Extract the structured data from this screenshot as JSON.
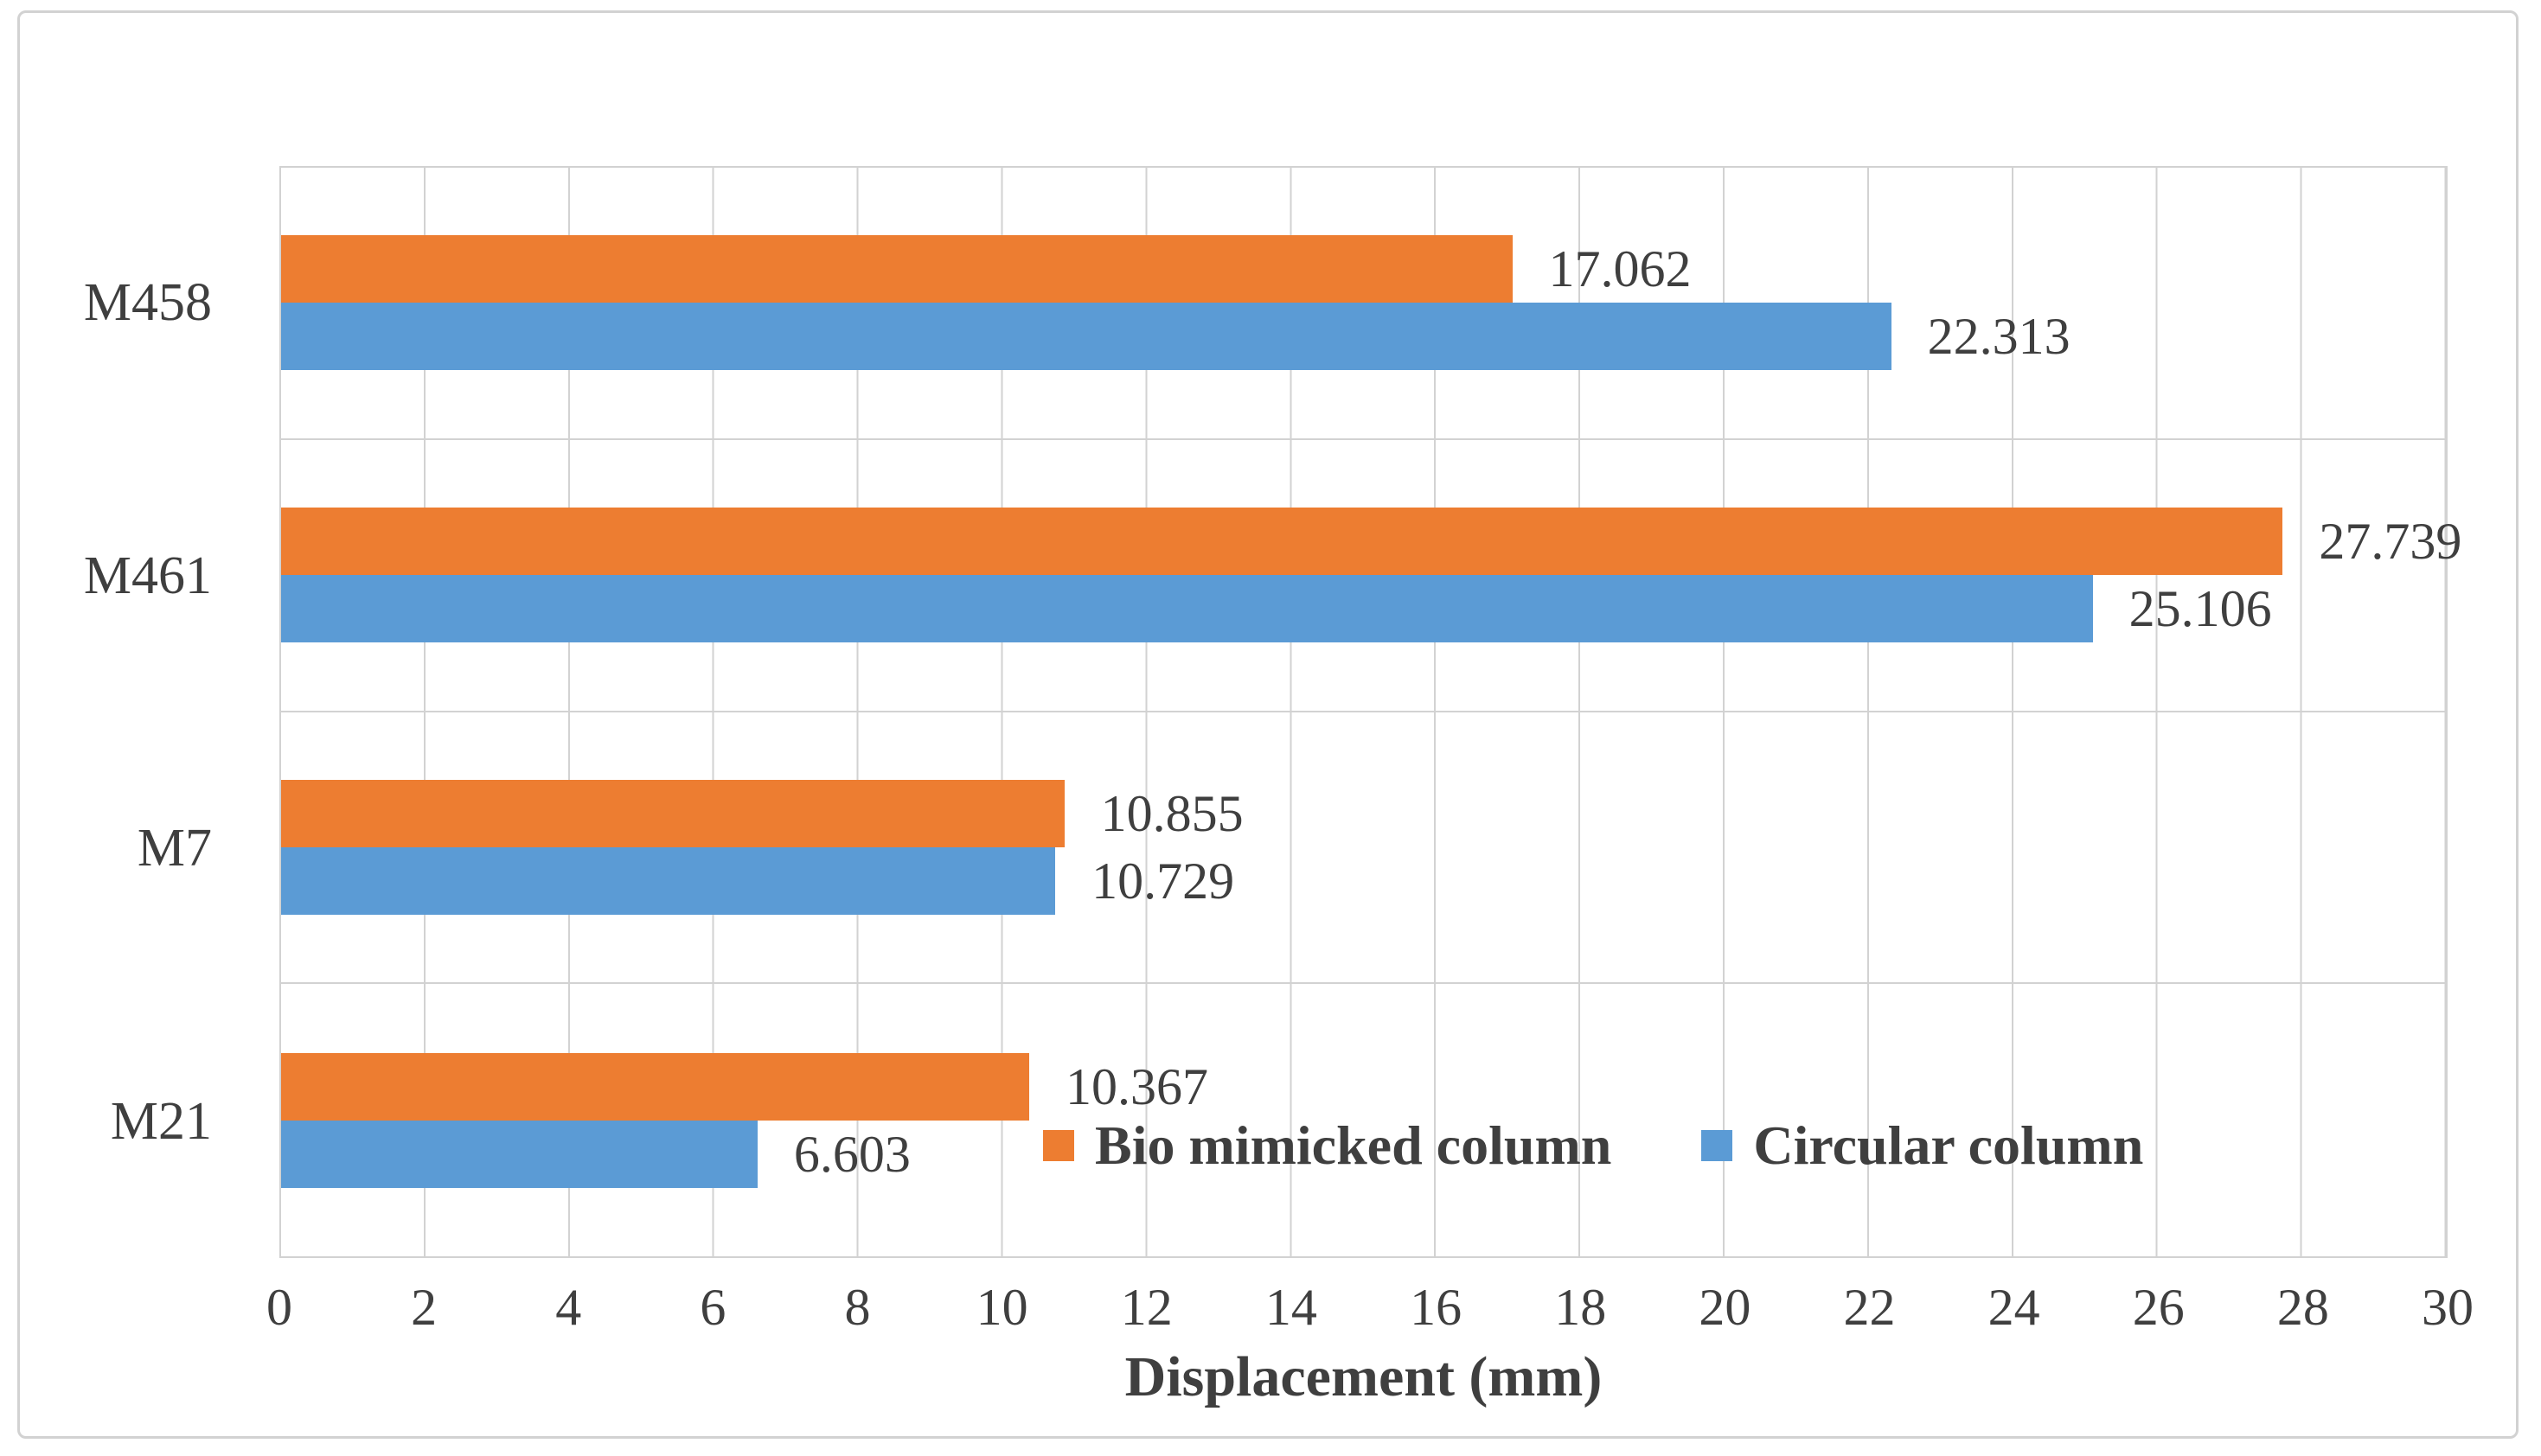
{
  "chart_data": {
    "type": "bar",
    "orientation": "horizontal",
    "title": "",
    "xlabel": "Displacement (mm)",
    "ylabel": "",
    "xlim": [
      0,
      30
    ],
    "x_ticks": [
      0,
      2,
      4,
      6,
      8,
      10,
      12,
      14,
      16,
      18,
      20,
      22,
      24,
      26,
      28,
      30
    ],
    "grid": true,
    "data_labels": true,
    "legend_position": "inside-bottom",
    "categories": [
      "M458",
      "M461",
      "M7",
      "M21"
    ],
    "series": [
      {
        "name": "Bio mimicked column",
        "color": "#ED7D31",
        "values": [
          17.062,
          27.739,
          10.855,
          10.367
        ]
      },
      {
        "name": "Circular column",
        "color": "#5B9BD5",
        "values": [
          22.313,
          25.106,
          10.729,
          6.603
        ]
      }
    ]
  },
  "colors": {
    "grid": "#d2d2d2",
    "text": "#3f3f3f",
    "background": "#ffffff",
    "frame_border": "#d2d2d2"
  }
}
